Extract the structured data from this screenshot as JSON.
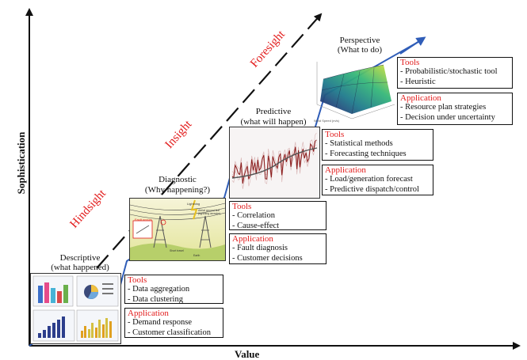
{
  "axes": {
    "y_title": "Sophistication",
    "x_title": "Value"
  },
  "trend_labels": [
    "Hindsight",
    "Insight",
    "Foresight"
  ],
  "stages": {
    "descriptive": {
      "title": "Descriptive",
      "subtitle": "(what happened)",
      "tools_head": "Tools",
      "tools": [
        "- Data aggregation",
        "- Data clustering"
      ],
      "app_head": "Application",
      "apps": [
        "- Demand response",
        "- Customer classification"
      ]
    },
    "diagnostic": {
      "title": "Diagnostic",
      "subtitle": "(Why happening?)",
      "tools_head": "Tools",
      "tools": [
        "- Correlation",
        "- Cause-effect"
      ],
      "app_head": "Application",
      "apps": [
        "- Fault diagnosis",
        "- Customer decisions"
      ],
      "image_text": [
        "Lightning",
        "Aerial ground line (lightning arrester)",
        "Fault occurs",
        "Short travel",
        "Earth"
      ]
    },
    "predictive": {
      "title": "Predictive",
      "subtitle": "(what will happen)",
      "tools_head": "Tools",
      "tools": [
        "- Statistical methods",
        "- Forecasting techniques"
      ],
      "app_head": "Application",
      "apps": [
        "- Load/generation forecast",
        "- Predictive dispatch/control"
      ]
    },
    "perspective": {
      "title": "Perspective",
      "subtitle": "(What to do)",
      "tools_head": "Tools",
      "tools": [
        "- Probabilistic/stochastic tool",
        "- Heuristic"
      ],
      "app_head": "Application",
      "apps": [
        "- Resource plan strategies",
        "- Decision under uncertainty"
      ],
      "image_text": [
        "Wind Speed (m/s)"
      ]
    }
  },
  "colors": {
    "accent_red": "#e21b1b",
    "stair_blue": "#2f5db8",
    "trend_black": "#111111",
    "axis_black": "#111111"
  }
}
